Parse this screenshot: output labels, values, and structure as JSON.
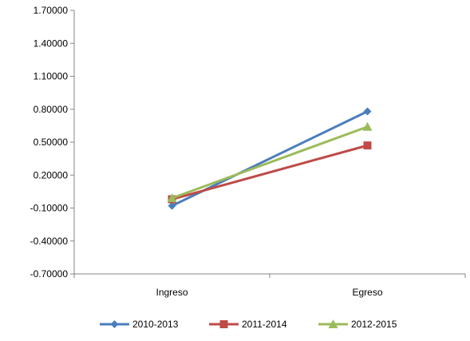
{
  "chart_data": {
    "type": "line",
    "categories": [
      "Ingreso",
      "Egreso"
    ],
    "series": [
      {
        "name": "2010-2013",
        "values": [
          -0.08,
          0.78
        ],
        "color": "#4a7ebb",
        "marker": "diamond"
      },
      {
        "name": "2011-2014",
        "values": [
          -0.02,
          0.47
        ],
        "color": "#be4b48",
        "marker": "square"
      },
      {
        "name": "2012-2015",
        "values": [
          -0.01,
          0.64
        ],
        "color": "#9bbb59",
        "marker": "triangle"
      }
    ],
    "y_ticks": [
      "1.70000",
      "1.40000",
      "1.10000",
      "0.80000",
      "0.50000",
      "0.20000",
      "-0.10000",
      "-0.40000",
      "-0.70000"
    ],
    "y_tick_values": [
      1.7,
      1.4,
      1.1,
      0.8,
      0.5,
      0.2,
      -0.1,
      -0.4,
      -0.7
    ],
    "ylim": [
      -0.7,
      1.7
    ],
    "grid": false,
    "legend_position": "bottom",
    "title": "",
    "xlabel": "",
    "ylabel": ""
  }
}
